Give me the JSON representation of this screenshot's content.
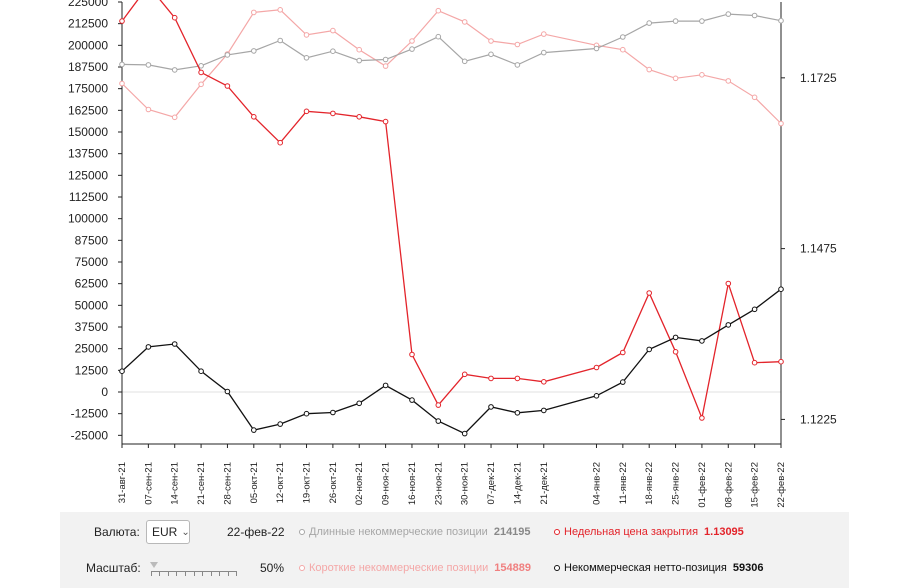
{
  "chart_data": {
    "type": "line",
    "categories": [
      "31-авг-21",
      "07-сен-21",
      "14-сен-21",
      "21-сен-21",
      "28-сен-21",
      "05-окт-21",
      "12-окт-21",
      "19-окт-21",
      "26-окт-21",
      "02-ноя-21",
      "09-ноя-21",
      "16-ноя-21",
      "23-ноя-21",
      "30-ноя-21",
      "07-дек-21",
      "14-дек-21",
      "21-дек-21",
      "04-янв-22",
      "11-янв-22",
      "18-янв-22",
      "25-янв-22",
      "01-фев-22",
      "08-фев-22",
      "15-фев-22",
      "22-фев-22"
    ],
    "x_days": [
      0,
      7,
      14,
      21,
      28,
      35,
      42,
      49,
      56,
      63,
      70,
      77,
      84,
      91,
      98,
      105,
      112,
      126,
      133,
      140,
      147,
      154,
      161,
      168,
      175
    ],
    "y_left_ticks": [
      "225000",
      "212500",
      "200000",
      "187500",
      "175000",
      "162500",
      "150000",
      "137500",
      "125000",
      "112500",
      "100000",
      "87500",
      "75000",
      "62500",
      "50000",
      "37500",
      "25000",
      "12500",
      "0",
      "-12500",
      "-25000"
    ],
    "y_left_range": [
      -30000,
      225000
    ],
    "y_right_ticks": [
      "1.1725",
      "1.1475",
      "1.1225"
    ],
    "y_right_range": [
      1.1189,
      1.1836
    ],
    "series": [
      {
        "name": "Длинные некоммерческие позиции",
        "axis": "left",
        "color": "#a6a6a6",
        "values": [
          189000,
          188700,
          185800,
          188200,
          194500,
          196800,
          202800,
          192800,
          196600,
          191200,
          191800,
          197800,
          205000,
          190800,
          194800,
          188700,
          195800,
          198200,
          204800,
          212800,
          214000,
          214000,
          218000,
          217200,
          214195
        ]
      },
      {
        "name": "Короткие некоммерческие позиции",
        "axis": "left",
        "color": "#f4a7a7",
        "values": [
          178000,
          163000,
          158500,
          177500,
          195000,
          219000,
          220500,
          206000,
          208500,
          197500,
          188000,
          202500,
          220000,
          213500,
          202500,
          200500,
          206500,
          200000,
          197500,
          186000,
          181000,
          183000,
          179500,
          170000,
          154889
        ]
      },
      {
        "name": "Недельная цена закрытия",
        "axis": "right",
        "color": "#e3242b",
        "values": [
          1.1808,
          1.186,
          1.1813,
          1.1733,
          1.1713,
          1.1668,
          1.163,
          1.1676,
          1.1673,
          1.1668,
          1.1661,
          1.132,
          1.1246,
          1.1291,
          1.1285,
          1.1285,
          1.128,
          1.1301,
          1.1323,
          1.141,
          1.1324,
          1.1227,
          1.1424,
          1.1308,
          1.13095
        ]
      },
      {
        "name": "Некоммерческая нетто-позиция",
        "axis": "left",
        "color": "#111111",
        "values": [
          12000,
          26000,
          27700,
          12000,
          300,
          -22000,
          -18500,
          -12500,
          -11800,
          -6500,
          3800,
          -4700,
          -16800,
          -24000,
          -8600,
          -12000,
          -10600,
          -2200,
          5700,
          24600,
          31500,
          29500,
          38700,
          47700,
          59306
        ]
      }
    ]
  },
  "controls": {
    "currency_label": "Валюта:",
    "currency_value": "EUR",
    "date": "22-фев-22",
    "scale_label": "Масштаб:",
    "scale_value": "50%"
  },
  "legend": [
    {
      "label": "Длинные некоммерческие позиции",
      "value": "214195",
      "color": "#a6a6a6",
      "text_color": "#a6a6a6"
    },
    {
      "label": "Недельная цена закрытия",
      "value": "1.13095",
      "color": "#e3242b",
      "text_color": "#e3242b"
    },
    {
      "label": "Короткие некоммерческие позиции",
      "value": "154889",
      "color": "#f4a7a7",
      "text_color": "#f4a7a7"
    },
    {
      "label": "Некоммерческая нетто-позиция",
      "value": "59306",
      "color": "#111111",
      "text_color": "#111111"
    }
  ]
}
